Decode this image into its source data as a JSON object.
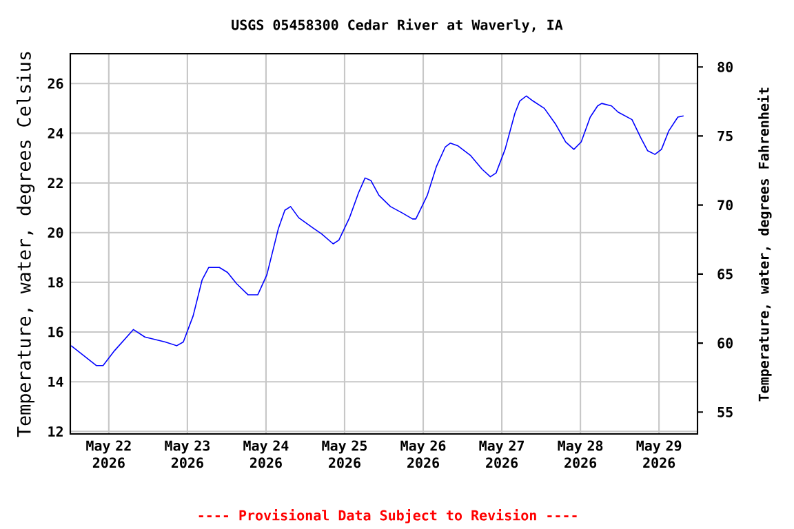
{
  "chart_data": {
    "type": "line",
    "title": "USGS 05458300 Cedar River at Waverly, IA",
    "ylabel": "Temperature, water, degrees Celsius",
    "y2label": "Temperature, water, degrees Fahrenheit",
    "annotations": [
      "---- Provisional Data Subject to Revision ----"
    ],
    "xlim": [
      "2026-05-21T12:15",
      "2026-05-29T11:45"
    ],
    "xticks": [
      {
        "value": "2026-05-22",
        "label": "May 22 2026"
      },
      {
        "value": "2026-05-23",
        "label": "May 23 2026"
      },
      {
        "value": "2026-05-24",
        "label": "May 24 2026"
      },
      {
        "value": "2026-05-25",
        "label": "May 25 2026"
      },
      {
        "value": "2026-05-26",
        "label": "May 26 2026"
      },
      {
        "value": "2026-05-27",
        "label": "May 27 2026"
      },
      {
        "value": "2026-05-28",
        "label": "May 28 2026"
      },
      {
        "value": "2026-05-29",
        "label": "May 29 2026"
      }
    ],
    "ylim": [
      11.9,
      27.2
    ],
    "yticks": [
      12,
      14,
      16,
      18,
      20,
      22,
      24,
      26
    ],
    "y2lim": [
      53.42,
      80.96
    ],
    "y2ticks": [
      55,
      60,
      65,
      70,
      75,
      80
    ],
    "grid": true,
    "marker": "none",
    "line_style": "solid",
    "x": [
      "2026-05-21T12:30",
      "2026-05-21T20:15",
      "2026-05-21T22:15",
      "2026-05-22T01:45",
      "2026-05-22T07:30",
      "2026-05-22T11:00",
      "2026-05-22T17:15",
      "2026-05-22T20:45",
      "2026-05-22T22:45",
      "2026-05-23T01:45",
      "2026-05-23T04:30",
      "2026-05-23T06:30",
      "2026-05-23T09:45",
      "2026-05-23T12:15",
      "2026-05-23T15:00",
      "2026-05-23T18:30",
      "2026-05-23T21:30",
      "2026-05-24T00:15",
      "2026-05-24T03:45",
      "2026-05-24T05:45",
      "2026-05-24T07:30",
      "2026-05-24T10:00",
      "2026-05-24T14:15",
      "2026-05-24T17:00",
      "2026-05-24T20:30",
      "2026-05-24T22:15",
      "2026-05-25T01:30",
      "2026-05-25T04:15",
      "2026-05-25T06:15",
      "2026-05-25T08:00",
      "2026-05-25T10:30",
      "2026-05-25T14:00",
      "2026-05-25T17:30",
      "2026-05-25T20:45",
      "2026-05-25T21:45",
      "2026-05-26T01:15",
      "2026-05-26T04:00",
      "2026-05-26T06:45",
      "2026-05-26T08:15",
      "2026-05-26T10:30",
      "2026-05-26T14:30",
      "2026-05-26T18:00",
      "2026-05-26T20:30",
      "2026-05-26T22:15",
      "2026-05-27T01:00",
      "2026-05-27T04:00",
      "2026-05-27T05:30",
      "2026-05-27T07:30",
      "2026-05-27T09:30",
      "2026-05-27T13:00",
      "2026-05-27T16:30",
      "2026-05-27T19:30",
      "2026-05-27T22:00",
      "2026-05-28T00:15",
      "2026-05-28T03:00",
      "2026-05-28T05:15",
      "2026-05-28T06:30",
      "2026-05-28T09:30",
      "2026-05-28T11:30",
      "2026-05-28T15:45",
      "2026-05-28T18:30",
      "2026-05-28T20:30",
      "2026-05-28T22:45",
      "2026-05-29T00:45",
      "2026-05-29T03:00",
      "2026-05-29T05:45",
      "2026-05-29T07:30"
    ],
    "series": [
      {
        "color": "#0000ff",
        "values": [
          15.45,
          14.65,
          14.65,
          15.25,
          16.1,
          15.8,
          15.6,
          15.45,
          15.6,
          16.65,
          18.1,
          18.6,
          18.6,
          18.4,
          17.95,
          17.5,
          17.5,
          18.3,
          20.15,
          20.9,
          21.05,
          20.6,
          20.2,
          19.95,
          19.55,
          19.7,
          20.6,
          21.6,
          22.2,
          22.1,
          21.5,
          21.05,
          20.8,
          20.55,
          20.55,
          21.5,
          22.65,
          23.45,
          23.6,
          23.5,
          23.1,
          22.55,
          22.25,
          22.4,
          23.35,
          24.8,
          25.3,
          25.5,
          25.3,
          25.0,
          24.35,
          23.65,
          23.35,
          23.65,
          24.65,
          25.1,
          25.2,
          25.1,
          24.85,
          24.55,
          23.8,
          23.3,
          23.15,
          23.35,
          24.1,
          24.65,
          24.7
        ]
      }
    ]
  }
}
